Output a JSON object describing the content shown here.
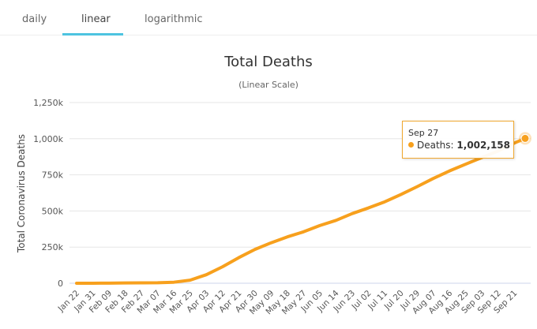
{
  "tabs": [
    {
      "label": "daily"
    },
    {
      "label": "linear"
    },
    {
      "label": "logarithmic"
    }
  ],
  "active_tab": "linear",
  "tooltip": {
    "date": "Sep 27",
    "series": "Deaths:",
    "value": "1,002,158"
  },
  "colors": {
    "line": "#f7a01d",
    "accent": "#4dc3e0"
  },
  "chart_data": {
    "type": "line",
    "title": "Total Deaths",
    "subtitle": "(Linear Scale)",
    "ylabel": "Total Coronavirus Deaths",
    "xlabel": "",
    "ylim": [
      0,
      1250000
    ],
    "yticks": [
      0,
      250000,
      500000,
      750000,
      1000000,
      1250000
    ],
    "ytick_labels": [
      "0",
      "250k",
      "500k",
      "750k",
      "1,000k",
      "1,250k"
    ],
    "xtick_labels": [
      "Jan 22",
      "Jan 31",
      "Feb 09",
      "Feb 18",
      "Feb 27",
      "Mar 07",
      "Mar 16",
      "Mar 25",
      "Apr 03",
      "Apr 12",
      "Apr 21",
      "Apr 30",
      "May 09",
      "May 18",
      "May 27",
      "Jun 05",
      "Jun 14",
      "Jun 23",
      "Jul 02",
      "Jul 11",
      "Jul 20",
      "Jul 29",
      "Aug 07",
      "Aug 16",
      "Aug 25",
      "Sep 03",
      "Sep 12",
      "Sep 21"
    ],
    "grid": true,
    "series": [
      {
        "name": "Deaths",
        "x_days": [
          0,
          9,
          18,
          27,
          36,
          45,
          54,
          63,
          72,
          81,
          90,
          99,
          108,
          117,
          126,
          135,
          144,
          153,
          162,
          171,
          180,
          189,
          198,
          207,
          216,
          225,
          234,
          243,
          249
        ],
        "values": [
          0,
          213,
          906,
          2004,
          2800,
          3500,
          7100,
          21300,
          59000,
          114000,
          177000,
          234000,
          280000,
          321000,
          356000,
          399000,
          435000,
          482000,
          521000,
          563000,
          614000,
          668000,
          725000,
          777000,
          824000,
          870000,
          915000,
          970000,
          1002158
        ]
      }
    ]
  }
}
